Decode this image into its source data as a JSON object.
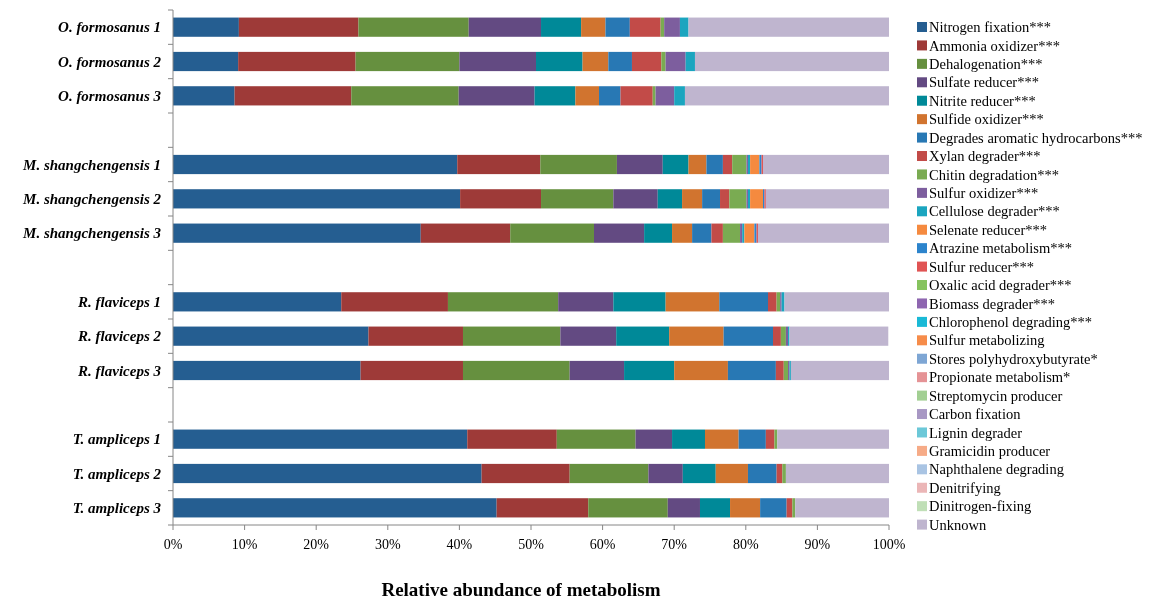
{
  "chart_data": {
    "type": "bar",
    "orientation": "horizontal",
    "stacked": true,
    "xlabel": "Relative abundance of metabolism",
    "legend": "right",
    "grid": false,
    "categories": [
      "O. formosanus 1",
      "O. formosanus 2",
      "O. formosanus 3",
      null,
      "M. shangchengensis 1",
      "M. shangchengensis 2",
      "M. shangchengensis 3",
      null,
      "R. flaviceps 1",
      "R. flaviceps 2",
      "R. flaviceps 3",
      null,
      "T. ampliceps 1",
      "T. ampliceps 2",
      "T. ampliceps 3"
    ],
    "xlim": [
      0,
      100
    ],
    "xticks": [
      {
        "value": 0,
        "label": "0%"
      },
      {
        "value": 10,
        "label": "10%"
      },
      {
        "value": 20,
        "label": "20%"
      },
      {
        "value": 30,
        "label": "30%"
      },
      {
        "value": 40,
        "label": "40%"
      },
      {
        "value": 50,
        "label": "50%"
      },
      {
        "value": 60,
        "label": "60%"
      },
      {
        "value": 70,
        "label": "70%"
      },
      {
        "value": 80,
        "label": "80%"
      },
      {
        "value": 90,
        "label": "90%"
      },
      {
        "value": 100,
        "label": "100%"
      }
    ],
    "series": [
      {
        "name": "Nitrogen fixation***",
        "color": "#255e91",
        "values": [
          9.2,
          9.1,
          8.6,
          null,
          39.7,
          40.1,
          34.6,
          null,
          23.5,
          27.3,
          26.2,
          null,
          41.1,
          43.1,
          45.2
        ]
      },
      {
        "name": "Ammonia oxidizer***",
        "color": "#9e3a38",
        "values": [
          16.7,
          16.4,
          16.3,
          null,
          11.6,
          11.3,
          12.5,
          null,
          14.9,
          13.2,
          14.3,
          null,
          12.5,
          12.3,
          12.8
        ]
      },
      {
        "name": "Dehalogenation***",
        "color": "#66903f",
        "values": [
          15.4,
          14.5,
          15.0,
          null,
          10.7,
          10.1,
          11.7,
          null,
          15.4,
          13.6,
          14.9,
          null,
          11.0,
          11.0,
          11.1
        ]
      },
      {
        "name": "Sulfate reducer***",
        "color": "#634a82",
        "values": [
          10.1,
          10.7,
          10.6,
          null,
          6.4,
          6.2,
          7.0,
          null,
          7.7,
          7.8,
          7.6,
          null,
          5.1,
          4.8,
          4.5
        ]
      },
      {
        "name": "Nitrite reducer***",
        "color": "#008998",
        "values": [
          5.6,
          6.5,
          5.7,
          null,
          3.6,
          3.4,
          3.9,
          null,
          7.3,
          7.4,
          7.0,
          null,
          4.6,
          4.6,
          4.2
        ]
      },
      {
        "name": "Sulfide oxidizer***",
        "color": "#d1742f",
        "values": [
          3.4,
          3.6,
          3.3,
          null,
          2.5,
          2.8,
          2.8,
          null,
          7.5,
          7.6,
          7.5,
          null,
          4.7,
          4.5,
          4.2
        ]
      },
      {
        "name": "Degrades aromatic hydrocarbons***",
        "color": "#2878b4",
        "values": [
          3.4,
          3.3,
          3.0,
          null,
          2.3,
          2.5,
          2.7,
          null,
          6.8,
          6.9,
          6.7,
          null,
          3.8,
          4.0,
          3.7
        ]
      },
      {
        "name": "Xylan degrader***",
        "color": "#c24b48",
        "values": [
          4.3,
          4.1,
          4.5,
          null,
          1.3,
          1.3,
          1.6,
          null,
          1.2,
          1.1,
          1.1,
          null,
          1.2,
          0.8,
          0.8
        ]
      },
      {
        "name": "Chitin degradation***",
        "color": "#7aab52",
        "values": [
          0.5,
          0.6,
          0.4,
          null,
          2.0,
          2.4,
          2.4,
          null,
          0.5,
          0.7,
          0.6,
          null,
          0.4,
          0.5,
          0.4
        ]
      },
      {
        "name": "Sulfur oxidizer***",
        "color": "#7d5e9e",
        "values": [
          2.2,
          2.8,
          2.6,
          null,
          0.2,
          0.2,
          0.3,
          null,
          0.2,
          0.3,
          0.2,
          null,
          0,
          0,
          0
        ]
      },
      {
        "name": "Cellulose degrader***",
        "color": "#1ba5bf",
        "values": [
          1.2,
          1.3,
          1.5,
          null,
          0.3,
          0.3,
          0.3,
          null,
          0.4,
          0.2,
          0.2,
          null,
          0,
          0,
          0
        ]
      },
      {
        "name": "Selenate reducer***",
        "color": "#f58a3f",
        "values": [
          0,
          0,
          0,
          null,
          1.3,
          1.8,
          1.4,
          null,
          0,
          0,
          0,
          null,
          0,
          0,
          0
        ]
      },
      {
        "name": "Atrazine metabolism***",
        "color": "#2c84cc",
        "values": [
          0,
          0,
          0,
          null,
          0.3,
          0.2,
          0.3,
          null,
          0,
          0,
          0,
          null,
          0,
          0,
          0
        ]
      },
      {
        "name": "Sulfur reducer***",
        "color": "#e05454",
        "values": [
          0,
          0,
          0,
          null,
          0.2,
          0.2,
          0.2,
          null,
          0,
          0,
          0,
          null,
          0,
          0,
          0
        ]
      },
      {
        "name": "Oxalic acid degrader***",
        "color": "#86c35e",
        "values": [
          0,
          0,
          0,
          null,
          0,
          0,
          0,
          null,
          0,
          0,
          0,
          null,
          0,
          0,
          0
        ]
      },
      {
        "name": "Biomass degrader***",
        "color": "#8e66b0",
        "values": [
          0,
          0,
          0,
          null,
          0,
          0,
          0,
          null,
          0,
          0,
          0,
          null,
          0,
          0,
          0
        ]
      },
      {
        "name": "Chlorophenol degrading***",
        "color": "#1ab9d6",
        "values": [
          0,
          0,
          0,
          null,
          0,
          0,
          0,
          null,
          0,
          0,
          0,
          null,
          0,
          0,
          0
        ]
      },
      {
        "name": "Sulfur metabolizing",
        "color": "#f68c4a",
        "values": [
          0,
          0,
          0,
          null,
          0,
          0,
          0,
          null,
          0,
          0,
          0,
          null,
          0,
          0,
          0
        ]
      },
      {
        "name": "Stores polyhydroxybutyrate*",
        "color": "#7ea6d4",
        "values": [
          0,
          0,
          0,
          null,
          0,
          0,
          0,
          null,
          0,
          0,
          0,
          null,
          0,
          0,
          0
        ]
      },
      {
        "name": "Propionate metabolism*",
        "color": "#e59396",
        "values": [
          0,
          0,
          0,
          null,
          0,
          0,
          0,
          null,
          0,
          0,
          0,
          null,
          0,
          0,
          0
        ]
      },
      {
        "name": "Streptomycin producer",
        "color": "#a2cf93",
        "values": [
          0,
          0,
          0,
          null,
          0,
          0,
          0,
          null,
          0,
          0,
          0,
          null,
          0,
          0,
          0
        ]
      },
      {
        "name": "Carbon fixation",
        "color": "#a898c4",
        "values": [
          0,
          0,
          0,
          null,
          0,
          0,
          0,
          null,
          0,
          0,
          0,
          null,
          0,
          0,
          0
        ]
      },
      {
        "name": "Lignin degrader",
        "color": "#6cc8d8",
        "values": [
          0,
          0,
          0,
          null,
          0,
          0,
          0,
          null,
          0,
          0,
          0,
          null,
          0,
          0,
          0
        ]
      },
      {
        "name": "Gramicidin producer",
        "color": "#f6ab87",
        "values": [
          0,
          0,
          0,
          null,
          0,
          0,
          0,
          null,
          0,
          0,
          0,
          null,
          0,
          0,
          0
        ]
      },
      {
        "name": "Naphthalene degrading",
        "color": "#a9c4e3",
        "values": [
          0,
          0,
          0,
          null,
          0,
          0,
          0,
          null,
          0,
          0,
          0,
          null,
          0,
          0,
          0
        ]
      },
      {
        "name": "Denitrifying",
        "color": "#ebb6b7",
        "values": [
          0,
          0,
          0,
          null,
          0,
          0,
          0,
          null,
          0,
          0,
          0,
          null,
          0,
          0,
          0
        ]
      },
      {
        "name": "Dinitrogen-fixing",
        "color": "#c0dfb7",
        "values": [
          0,
          0,
          0,
          null,
          0,
          0,
          0,
          null,
          0,
          0,
          0,
          null,
          0,
          0,
          0
        ]
      },
      {
        "name": "Unknown",
        "color": "#bfb5cf",
        "values": [
          28.0,
          27.1,
          28.5,
          null,
          17.6,
          17.2,
          18.3,
          null,
          14.6,
          13.8,
          13.7,
          null,
          15.6,
          14.4,
          13.1
        ]
      }
    ]
  }
}
